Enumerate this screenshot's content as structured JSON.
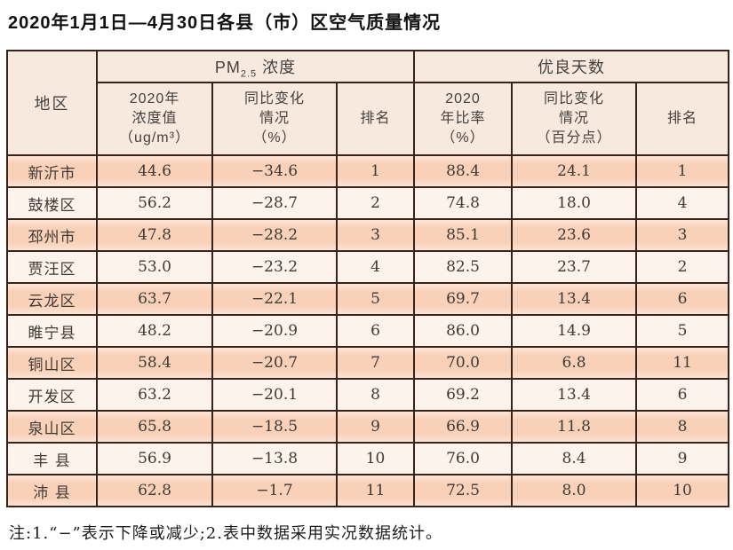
{
  "title": "2020年1月1日—4月30日各县（市）区空气质量情况",
  "footnote": "注:1.“−”表示下降或减少;2.表中数据采用实况数据统计。",
  "colors": {
    "row_odd_bg": "#f9d0b8",
    "row_even_bg": "#fcf3ec",
    "header_bg": "#f8e9df",
    "border": "#38231a",
    "text": "#3f3a36"
  },
  "table": {
    "region_header": "地区",
    "pm_prefix": "PM",
    "pm_sub": "2.5",
    "pm_suffix": " 浓度",
    "good_days_header": "优良天数",
    "sub_headers": [
      "2020年\n浓度值\n（ug/m³）",
      "同比变化\n情况\n（%）",
      "排名",
      "2020\n年比率\n（%）",
      "同比变化\n情况\n（百分点）",
      "排名"
    ],
    "rows": [
      [
        "新沂市",
        "44.6",
        "−34.6",
        "1",
        "88.4",
        "24.1",
        "1"
      ],
      [
        "鼓楼区",
        "56.2",
        "−28.7",
        "2",
        "74.8",
        "18.0",
        "4"
      ],
      [
        "邳州市",
        "47.8",
        "−28.2",
        "3",
        "85.1",
        "23.6",
        "3"
      ],
      [
        "贾汪区",
        "53.0",
        "−23.2",
        "4",
        "82.5",
        "23.7",
        "2"
      ],
      [
        "云龙区",
        "63.7",
        "−22.1",
        "5",
        "69.7",
        "13.4",
        "6"
      ],
      [
        "睢宁县",
        "48.2",
        "−20.9",
        "6",
        "86.0",
        "14.9",
        "5"
      ],
      [
        "铜山区",
        "58.4",
        "−20.7",
        "7",
        "70.0",
        "6.8",
        "11"
      ],
      [
        "开发区",
        "63.2",
        "−20.1",
        "8",
        "69.2",
        "13.4",
        "6"
      ],
      [
        "泉山区",
        "65.8",
        "−18.5",
        "9",
        "66.9",
        "11.8",
        "8"
      ],
      [
        "丰 县",
        "56.9",
        "−13.8",
        "10",
        "76.0",
        "8.4",
        "9"
      ],
      [
        "沛 县",
        "62.8",
        "−1.7",
        "11",
        "72.5",
        "8.0",
        "10"
      ]
    ]
  }
}
